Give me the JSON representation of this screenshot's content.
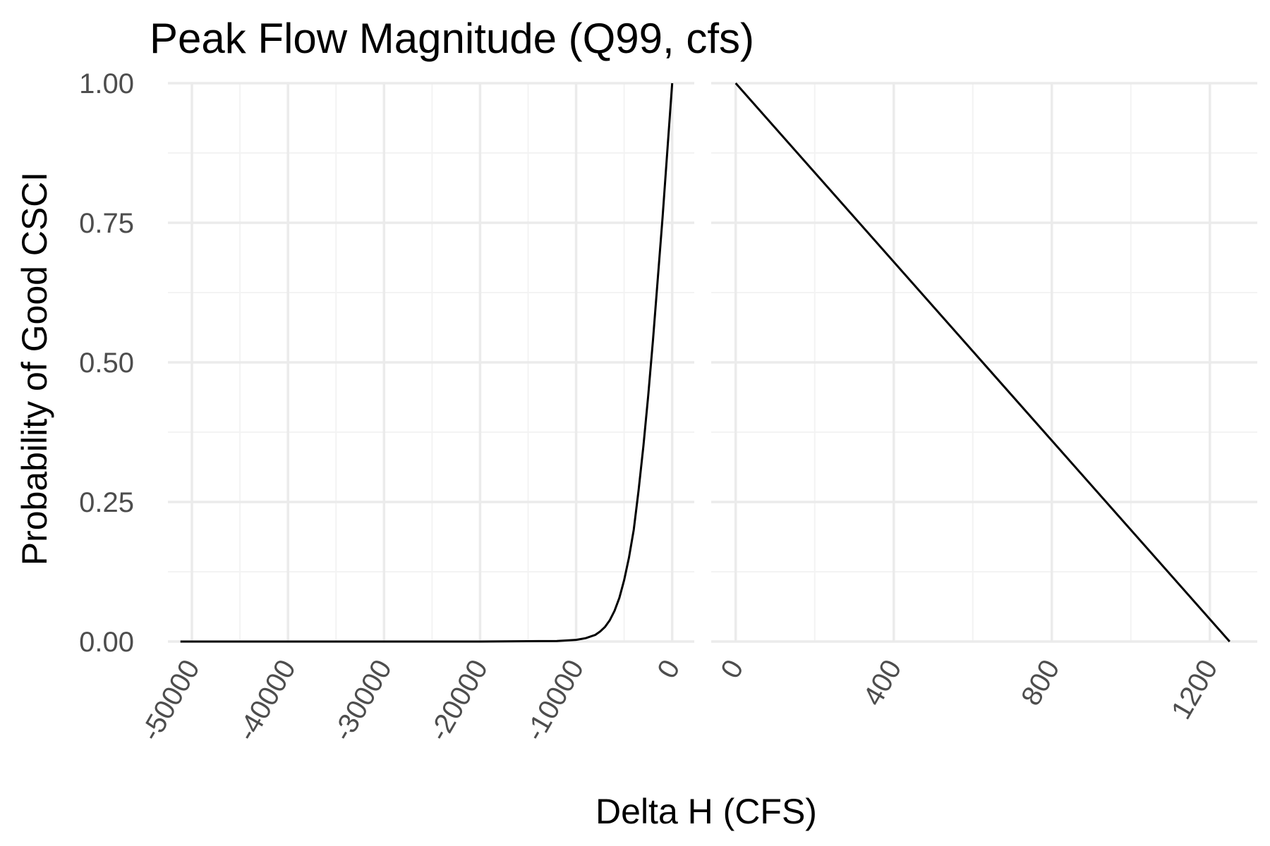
{
  "chart_data": {
    "type": "line",
    "title": "Peak Flow Magnitude (Q99, cfs)",
    "xlabel": "Delta H (CFS)",
    "ylabel": "Probability of Good CSCI",
    "ylim": [
      0,
      1
    ],
    "y_ticks": [
      0.0,
      0.25,
      0.5,
      0.75,
      1.0
    ],
    "y_tick_labels": [
      "0.00",
      "0.25",
      "0.50",
      "0.75",
      "1.00"
    ],
    "grid": true,
    "panels": [
      {
        "name": "negative",
        "xlim": [
          -52500,
          2300
        ],
        "x_ticks": [
          -50000,
          -40000,
          -30000,
          -20000,
          -10000,
          0
        ],
        "x_tick_labels": [
          "-50000",
          "-40000",
          "-30000",
          "-20000",
          "-10000",
          "0"
        ],
        "x_minor_ticks": [
          -45000,
          -35000,
          -25000,
          -15000,
          -5000
        ],
        "series": [
          {
            "x": [
              -51200,
              -40000,
              -30000,
              -20000,
              -12000,
              -10000,
              -9000,
              -8000,
              -7500,
              -7000,
              -6500,
              -6000,
              -5500,
              -5000,
              -4500,
              -4000,
              -3500,
              -3000,
              -2500,
              -2000,
              -1500,
              -1000,
              -500,
              0
            ],
            "y": [
              0.0,
              0.0,
              0.0,
              0.0,
              0.001,
              0.003,
              0.006,
              0.012,
              0.018,
              0.026,
              0.038,
              0.055,
              0.078,
              0.11,
              0.15,
              0.2,
              0.27,
              0.35,
              0.44,
              0.54,
              0.65,
              0.76,
              0.88,
              1.0
            ]
          }
        ]
      },
      {
        "name": "positive",
        "xlim": [
          -62,
          1320
        ],
        "x_ticks": [
          0,
          400,
          800,
          1200
        ],
        "x_tick_labels": [
          "0",
          "400",
          "800",
          "1200"
        ],
        "x_minor_ticks": [
          200,
          600,
          1000
        ],
        "series": [
          {
            "x": [
              0,
              1250
            ],
            "y": [
              1.0,
              0.0
            ]
          }
        ]
      }
    ]
  }
}
